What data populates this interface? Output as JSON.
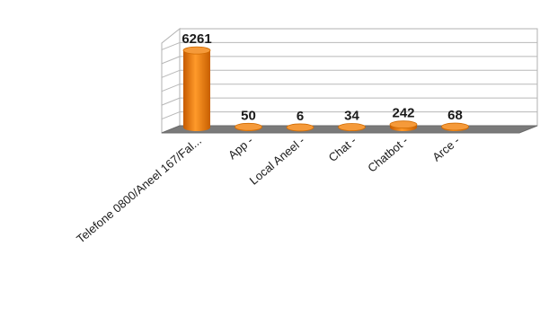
{
  "chart_data": {
    "type": "bar",
    "categories": [
      "Telefone 0800/Aneel 167/Fal...",
      "App -",
      "Local Aneel -",
      "Chat -",
      "Chatbot -",
      "Arce -"
    ],
    "values": [
      6261,
      50,
      6,
      34,
      242,
      68
    ],
    "ylim": [
      0,
      7000
    ],
    "grid": true,
    "legend": "none",
    "bar_color": "#f08010",
    "floor_color": "#7a7a7a"
  }
}
